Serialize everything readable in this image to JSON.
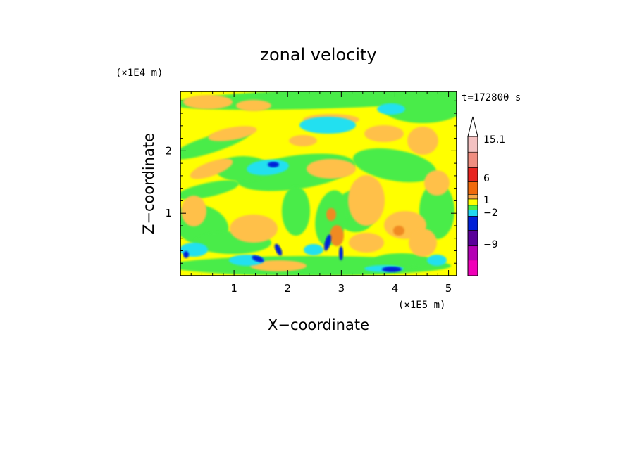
{
  "chart_data": {
    "type": "heatmap",
    "title": "zonal velocity",
    "xlabel": "X−coordinate",
    "ylabel": "Z−coordinate",
    "x_unit": "(×1E5 m)",
    "y_unit": "(×1E4 m)",
    "time_label": "t=172800 s",
    "xlim": [
      0,
      5.15
    ],
    "ylim": [
      0,
      2.95
    ],
    "x_ticks": [
      "1",
      "2",
      "3",
      "4",
      "5"
    ],
    "x_tick_values": [
      1,
      2,
      3,
      4,
      5
    ],
    "y_ticks": [
      "1",
      "2"
    ],
    "y_tick_values": [
      1,
      2
    ],
    "colorbar": {
      "levels_labeled": [
        "15.1",
        "6",
        "1",
        "−2",
        "−9"
      ],
      "level_values": [
        15.1,
        6,
        1,
        -2,
        -9
      ],
      "colors": [
        "#f4c1c1",
        "#ef8d80",
        "#e8231f",
        "#f06a0c",
        "#f8a848",
        "#ffff00",
        "#48ec4a",
        "#20d8f0",
        "#0020d8",
        "#5a009a",
        "#b400b4",
        "#f000b8"
      ]
    },
    "palette": {
      "yellow": "#ffff00",
      "orange": "#ffc04a",
      "green": "#48ec4a",
      "cyan": "#20e0f0",
      "blue": "#0020d8",
      "darkorange": "#f08a20"
    },
    "grid": false,
    "legend": "colorbar-right"
  }
}
